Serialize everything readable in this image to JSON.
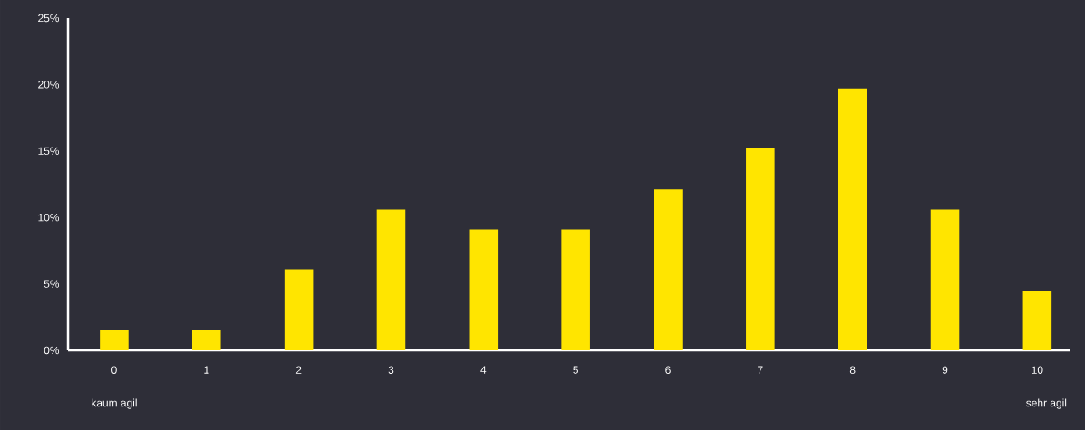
{
  "chart_data": {
    "type": "bar",
    "categories": [
      "0",
      "1",
      "2",
      "3",
      "4",
      "5",
      "6",
      "7",
      "8",
      "9",
      "10"
    ],
    "values": [
      1.5,
      1.5,
      6.1,
      10.6,
      9.1,
      9.1,
      12.1,
      15.2,
      19.7,
      10.6,
      4.5
    ],
    "color": "#ffe500",
    "ylim": [
      0,
      25
    ],
    "yticks": [
      {
        "value": 0,
        "label": "0%"
      },
      {
        "value": 5,
        "label": "5%"
      },
      {
        "value": 10,
        "label": "10%"
      },
      {
        "value": 15,
        "label": "15%"
      },
      {
        "value": 20,
        "label": "20%"
      },
      {
        "value": 25,
        "label": "25%"
      }
    ],
    "annotations": [
      "kaum agil",
      "sehr agil"
    ],
    "grid": false
  }
}
